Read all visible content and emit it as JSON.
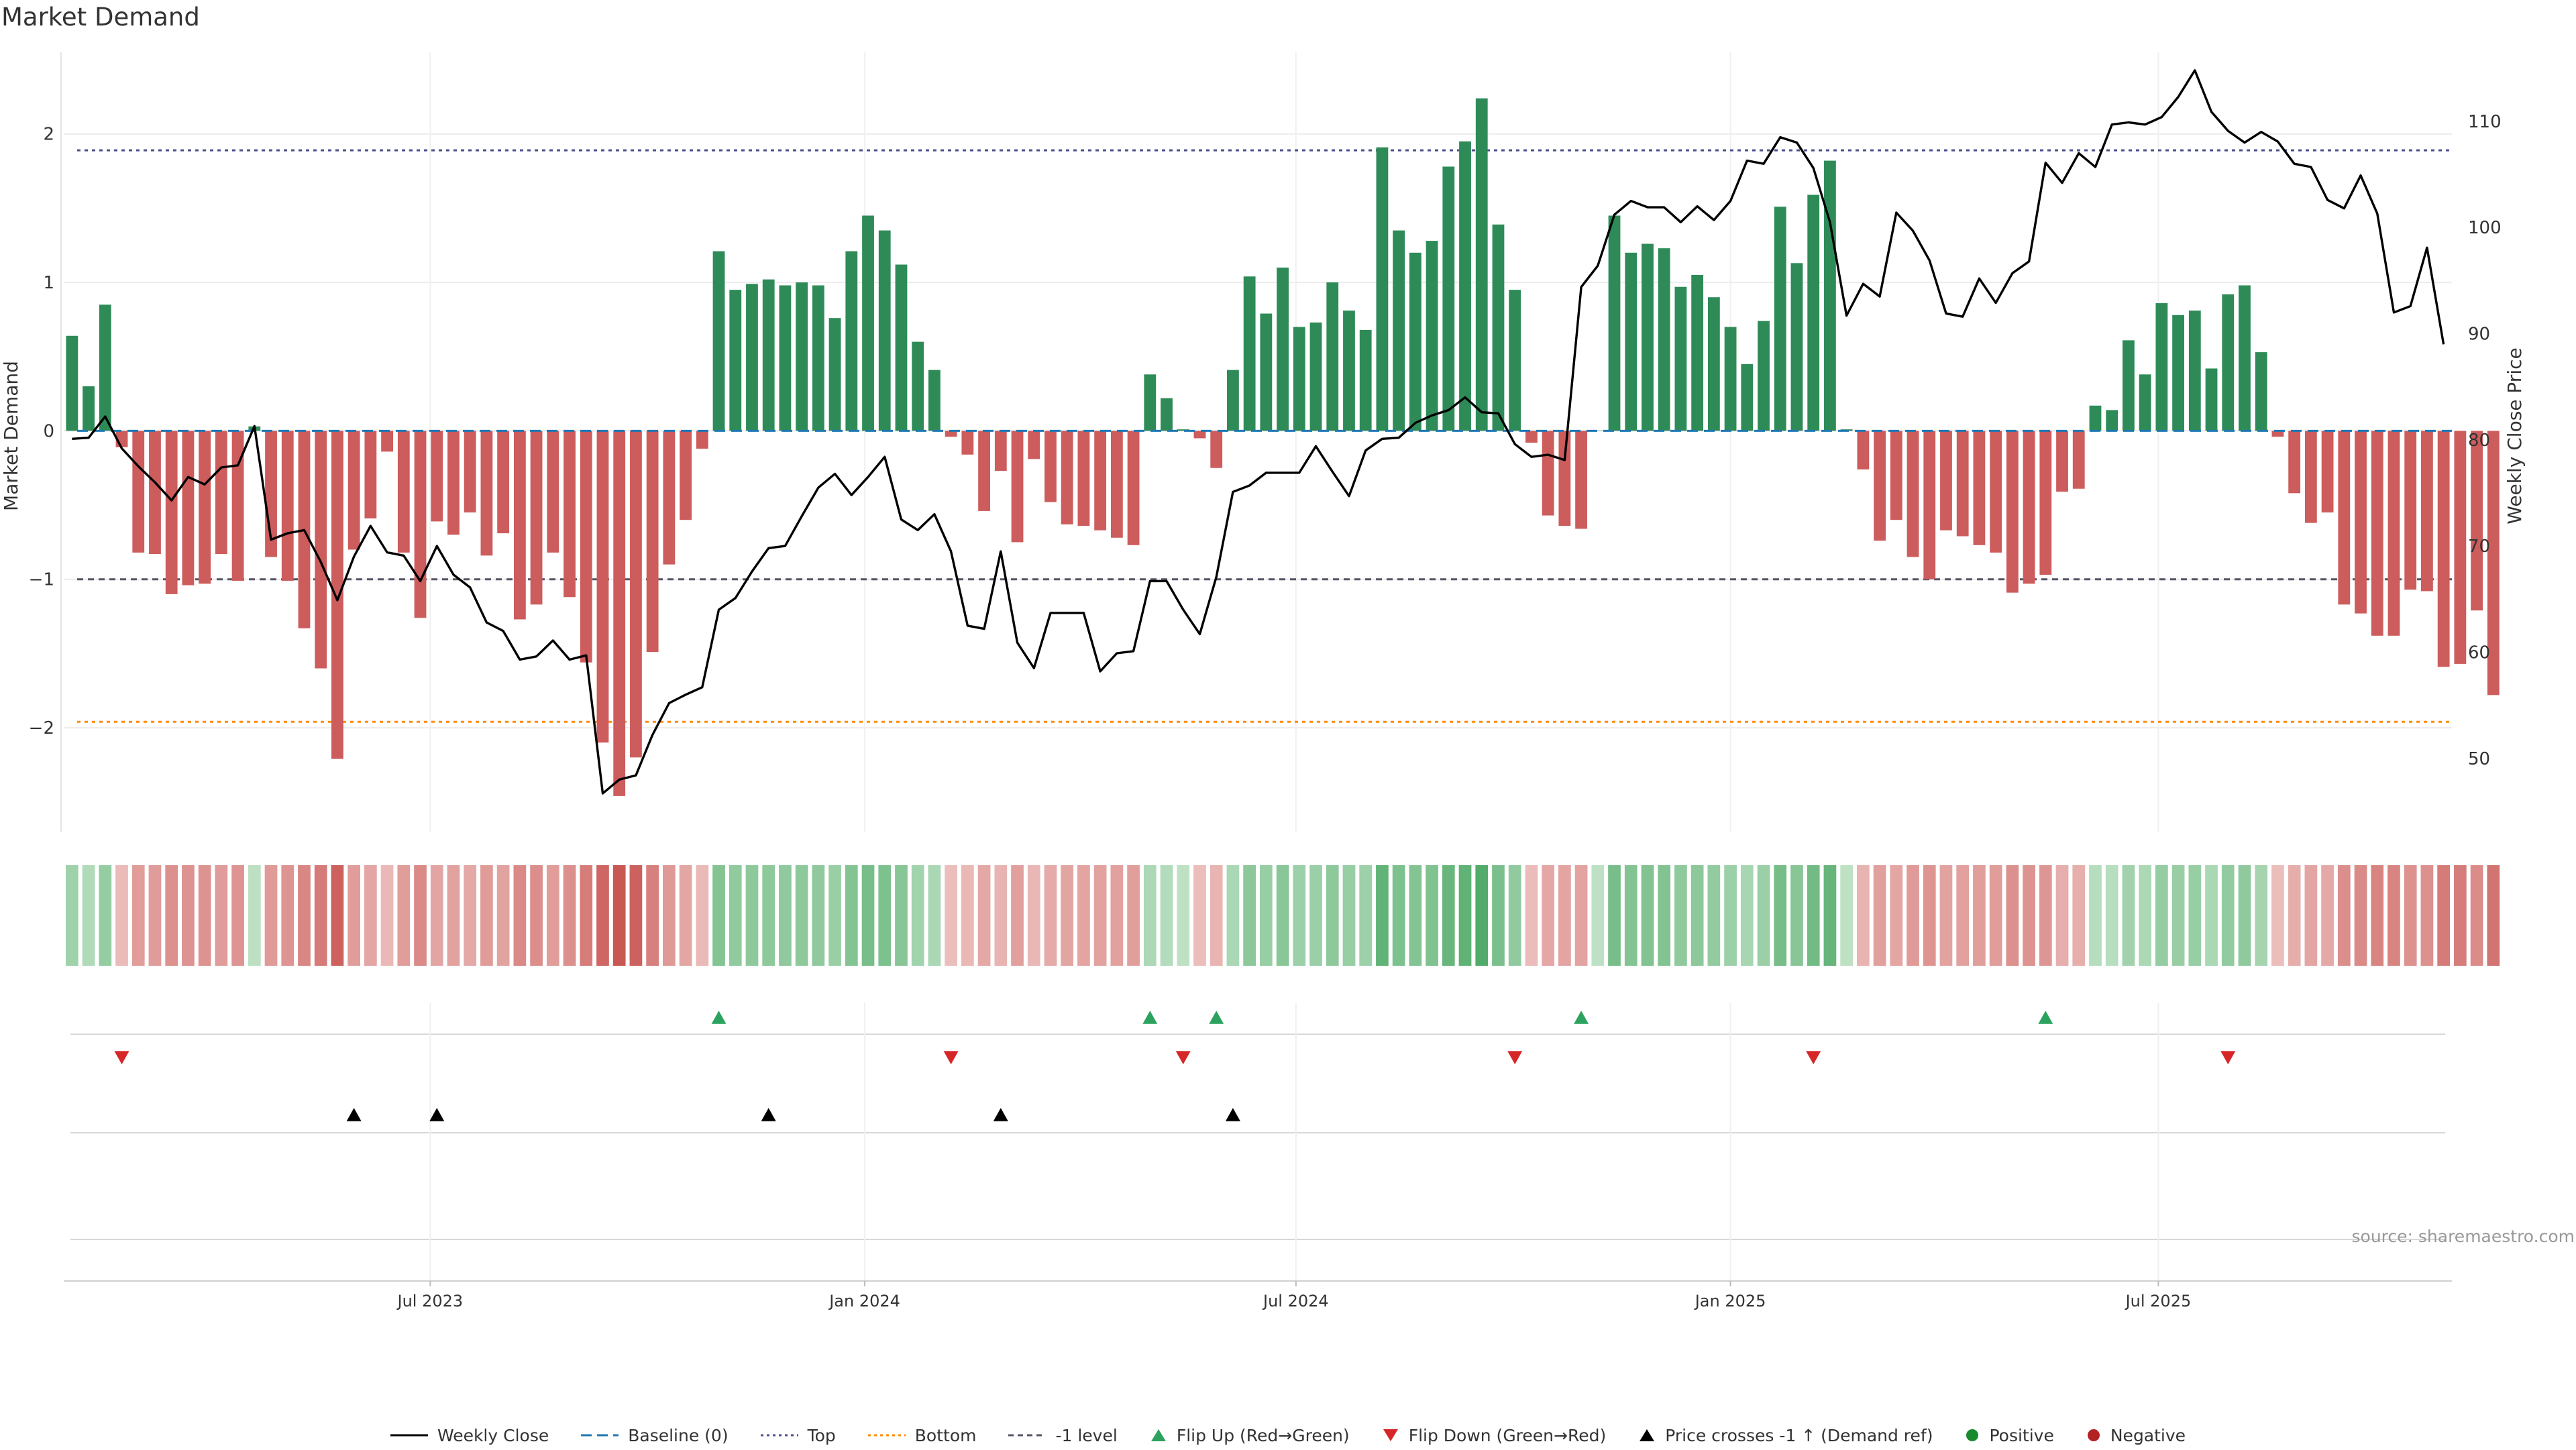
{
  "chart_data": {
    "type": "bar",
    "title": "Market Demand",
    "ylabel": "Market Demand",
    "y2label": "Weekly Close Price",
    "ylim": [
      -2.7,
      2.55
    ],
    "y2lim": [
      43.1,
      116.5
    ],
    "yticks": [
      -2,
      -1,
      0,
      1,
      2
    ],
    "yticklabels": [
      "−2",
      "−1",
      "0",
      "1",
      "2"
    ],
    "y2ticks": [
      50,
      60,
      70,
      80,
      90,
      100,
      110
    ],
    "y2ticklabels": [
      "50",
      "60",
      "70",
      "80",
      "90",
      "100",
      "110"
    ],
    "x_start_week": 0,
    "x_range_weeks": [
      -0.5,
      143.5
    ],
    "xticks": [
      {
        "label": "Jul 2023",
        "week": 21.6
      },
      {
        "label": "Jan 2024",
        "week": 47.8
      },
      {
        "label": "Jul 2024",
        "week": 73.8
      },
      {
        "label": "Jan 2025",
        "week": 100.0
      },
      {
        "label": "Jul 2025",
        "week": 125.8
      }
    ],
    "reference_lines": {
      "top": 1.89,
      "bottom": -1.96,
      "minus_one_level": -1.0,
      "baseline": 0
    },
    "demand": [
      0.64,
      0.3,
      0.85,
      -0.11,
      -0.82,
      -0.83,
      -1.1,
      -1.04,
      -1.03,
      -0.83,
      -1.01,
      0.03,
      -0.85,
      -1.01,
      -1.33,
      -1.6,
      -2.21,
      -0.8,
      -0.59,
      -0.14,
      -0.82,
      -1.26,
      -0.61,
      -0.7,
      -0.55,
      -0.84,
      -0.69,
      -1.27,
      -1.17,
      -0.82,
      -1.12,
      -1.56,
      -2.1,
      -2.46,
      -2.2,
      -1.49,
      -0.9,
      -0.6,
      -0.12,
      1.21,
      0.95,
      0.99,
      1.02,
      0.98,
      1.0,
      0.98,
      0.76,
      1.21,
      1.45,
      1.35,
      1.12,
      0.6,
      0.41,
      -0.04,
      -0.16,
      -0.54,
      -0.27,
      -0.75,
      -0.19,
      -0.48,
      -0.63,
      -0.64,
      -0.67,
      -0.72,
      -0.77,
      0.38,
      0.22,
      0.01,
      -0.05,
      -0.25,
      0.41,
      1.04,
      0.79,
      1.1,
      0.7,
      0.73,
      1.0,
      0.81,
      0.68,
      1.91,
      1.35,
      1.2,
      1.28,
      1.78,
      1.95,
      2.24,
      1.39,
      0.95,
      -0.08,
      -0.57,
      -0.64,
      -0.66,
      0.0,
      1.45,
      1.2,
      1.26,
      1.23,
      0.97,
      1.05,
      0.9,
      0.7,
      0.45,
      0.74,
      1.51,
      1.13,
      1.59,
      1.82,
      0.01,
      -0.26,
      -0.74,
      -0.6,
      -0.85,
      -1.0,
      -0.67,
      -0.71,
      -0.77,
      -0.82,
      -1.09,
      -1.03,
      -0.97,
      -0.41,
      -0.39,
      0.17,
      0.14,
      0.61,
      0.38,
      0.86,
      0.78,
      0.81,
      0.42,
      0.92,
      0.98,
      0.53,
      -0.04,
      -0.42,
      -0.62,
      -0.55,
      -1.17,
      -1.23,
      -1.38,
      -1.38,
      -1.07,
      -1.08,
      -1.59,
      -1.57,
      -1.21,
      -1.78
    ],
    "weekly_close": [
      80.1,
      80.2,
      82.2,
      79.2,
      77.5,
      76.0,
      74.3,
      76.5,
      75.8,
      77.4,
      77.6,
      81.3,
      70.6,
      71.2,
      71.5,
      68.5,
      64.9,
      69.0,
      71.9,
      69.4,
      69.1,
      66.7,
      70.0,
      67.3,
      66.1,
      62.8,
      62.0,
      59.3,
      59.6,
      61.1,
      59.3,
      59.7,
      46.7,
      48.0,
      48.4,
      52.2,
      55.2,
      56.0,
      56.7,
      64.0,
      65.1,
      67.6,
      69.8,
      70.0,
      72.8,
      75.5,
      76.8,
      74.8,
      76.5,
      78.4,
      72.5,
      71.5,
      73.0,
      69.5,
      62.5,
      62.2,
      69.5,
      60.9,
      58.5,
      63.7,
      63.7,
      63.7,
      58.2,
      59.9,
      60.1,
      66.7,
      66.7,
      64.0,
      61.7,
      67.1,
      75.1,
      75.7,
      76.9,
      76.9,
      76.9,
      79.4,
      77.0,
      74.7,
      79.0,
      80.1,
      80.2,
      81.6,
      82.3,
      82.8,
      84.0,
      82.6,
      82.5,
      79.6,
      78.4,
      78.6,
      78.1,
      94.4,
      96.4,
      101.2,
      102.5,
      101.9,
      101.9,
      100.5,
      102.0,
      100.7,
      102.5,
      106.3,
      106.0,
      108.5,
      108.0,
      105.6,
      100.5,
      91.7,
      94.7,
      93.5,
      101.4,
      99.7,
      96.9,
      91.9,
      91.6,
      95.2,
      92.9,
      95.7,
      96.8,
      106.1,
      104.2,
      107.0,
      105.7,
      109.7,
      109.9,
      109.7,
      110.4,
      112.3,
      114.8,
      110.9,
      109.1,
      108.0,
      109.0,
      108.1,
      106.0,
      105.7,
      102.6,
      101.8,
      104.9,
      101.3,
      92.0,
      92.6,
      98.1,
      89.0
    ],
    "flip_up_weeks": [
      39,
      65,
      69,
      91,
      119
    ],
    "flip_down_weeks": [
      3,
      53,
      67,
      87,
      105,
      130
    ],
    "price_cross_weeks": [
      17,
      22,
      42,
      56,
      70
    ],
    "source_text": "source: sharemaestro.com",
    "colors": {
      "positive": "#2e8b57",
      "negative": "#cd5c5c",
      "close_line": "#000000",
      "baseline": "#1f77b4",
      "top": "#4a4e8c",
      "bottom": "#ff8c00",
      "minus_one": "#555566",
      "flip_up": "#2ca25f",
      "flip_down": "#d62728",
      "cross": "#000000",
      "positive_dot": "#1a8a2e",
      "negative_dot": "#b22222"
    }
  },
  "legend": {
    "weekly_close": "Weekly Close",
    "baseline": "Baseline (0)",
    "top": "Top",
    "bottom": "Bottom",
    "minus_one": "-1 level",
    "flip_up": "Flip Up (Red→Green)",
    "flip_down": "Flip Down (Green→Red)",
    "price_cross": "Price crosses -1 ↑ (Demand ref)",
    "positive": "Positive",
    "negative": "Negative"
  }
}
